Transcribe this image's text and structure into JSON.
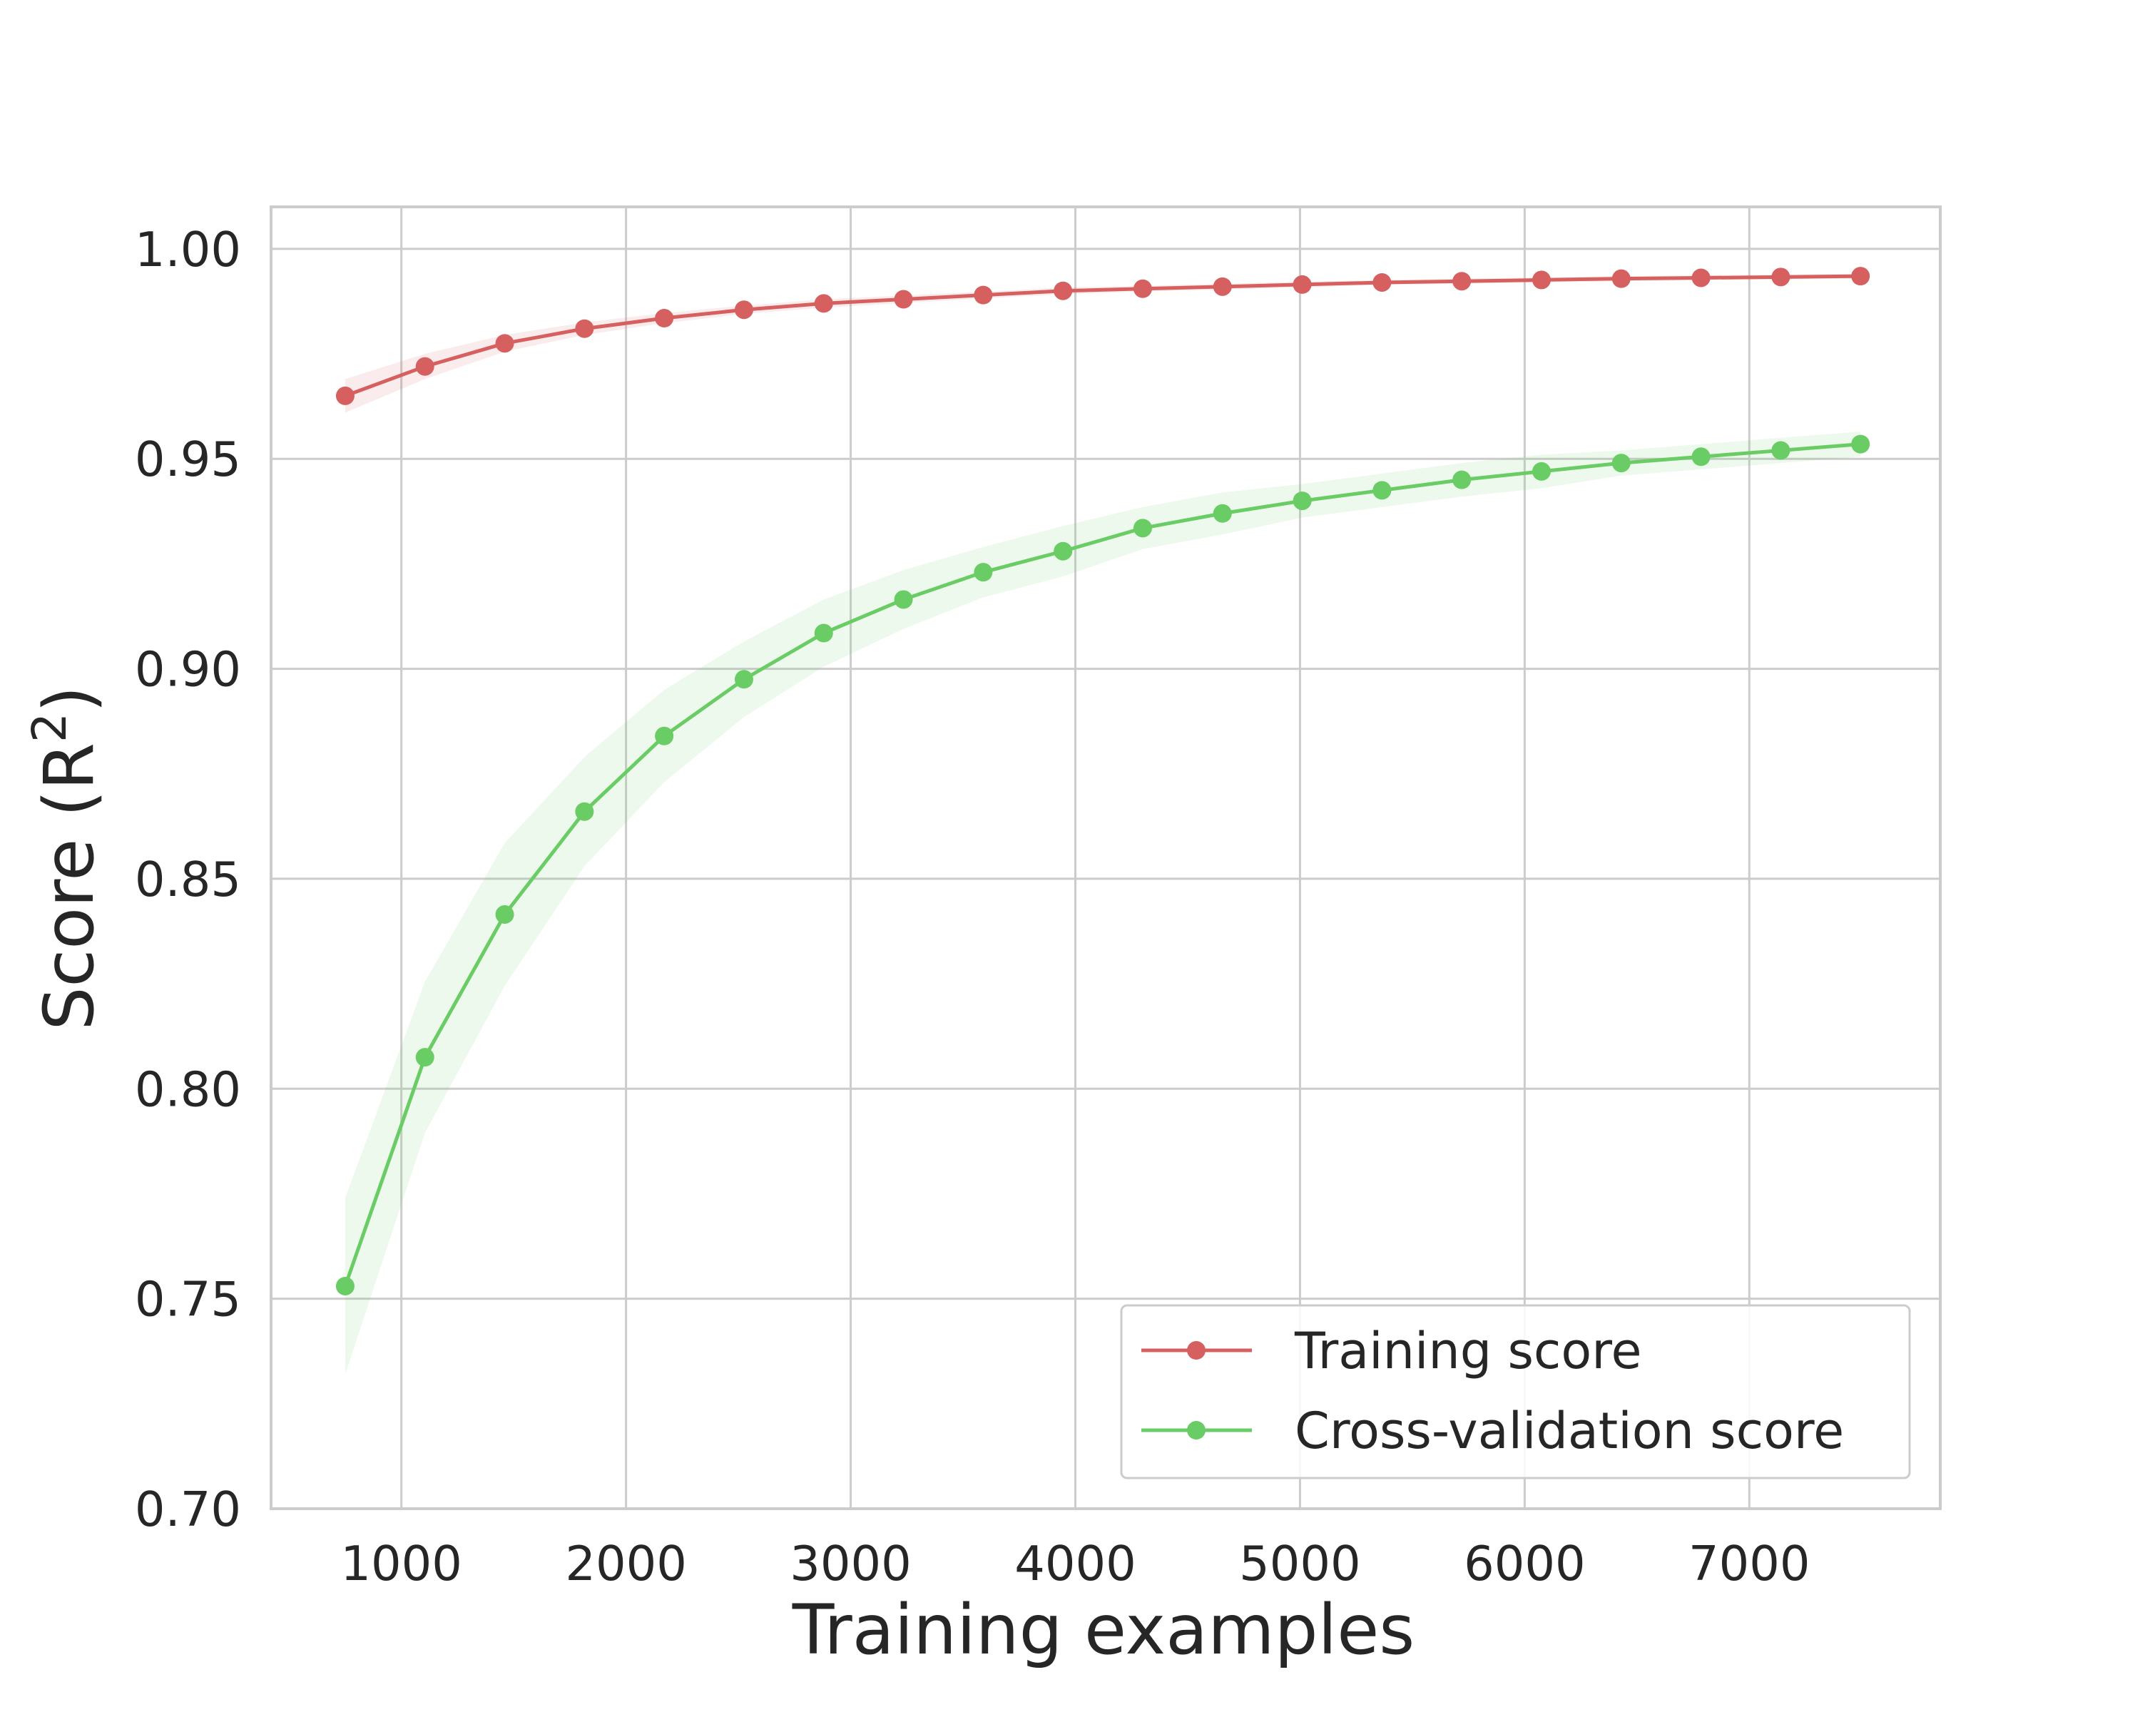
{
  "chart_data": {
    "type": "line",
    "title": "",
    "xlabel": "Training examples",
    "ylabel": {
      "base": "Score (R",
      "superscript": "2",
      "close": ")"
    },
    "xlim": [
      420,
      7850
    ],
    "ylim": [
      0.7,
      1.01
    ],
    "xticks": [
      1000,
      2000,
      3000,
      4000,
      5000,
      6000,
      7000
    ],
    "xtick_labels": [
      "1000",
      "2000",
      "3000",
      "4000",
      "5000",
      "6000",
      "7000"
    ],
    "yticks": [
      0.7,
      0.75,
      0.8,
      0.85,
      0.9,
      0.95,
      1.0
    ],
    "ytick_labels": [
      "0.70",
      "0.75",
      "0.80",
      "0.85",
      "0.90",
      "0.95",
      "1.00"
    ],
    "grid": true,
    "legend_position": "lower-right",
    "x": [
      750,
      1105,
      1460,
      1815,
      2170,
      2525,
      2880,
      3235,
      3590,
      3945,
      4300,
      4655,
      5010,
      5365,
      5720,
      6075,
      6430,
      6785,
      7140,
      7495
    ],
    "series": [
      {
        "name": "Training score",
        "color": "#d65f5f",
        "values": [
          0.965,
          0.972,
          0.9775,
          0.981,
          0.9835,
          0.9855,
          0.987,
          0.988,
          0.989,
          0.99,
          0.9905,
          0.991,
          0.9915,
          0.992,
          0.9923,
          0.9926,
          0.9929,
          0.9931,
          0.9933,
          0.9935
        ],
        "band": [
          0.004,
          0.003,
          0.002,
          0.0015,
          0.0012,
          0.001,
          0.001,
          0.0009,
          0.0008,
          0.0008,
          0.0007,
          0.0007,
          0.0007,
          0.0006,
          0.0006,
          0.0006,
          0.0006,
          0.0006,
          0.0006,
          0.0006
        ]
      },
      {
        "name": "Cross-validation score",
        "color": "#6acc64",
        "values": [
          0.753,
          0.8075,
          0.8415,
          0.866,
          0.884,
          0.8975,
          0.9085,
          0.9165,
          0.923,
          0.928,
          0.9335,
          0.937,
          0.94,
          0.9425,
          0.945,
          0.947,
          0.949,
          0.9505,
          0.952,
          0.9535
        ],
        "band": [
          0.021,
          0.018,
          0.017,
          0.013,
          0.011,
          0.009,
          0.008,
          0.007,
          0.006,
          0.006,
          0.005,
          0.005,
          0.004,
          0.004,
          0.004,
          0.004,
          0.003,
          0.003,
          0.003,
          0.003
        ]
      }
    ]
  }
}
